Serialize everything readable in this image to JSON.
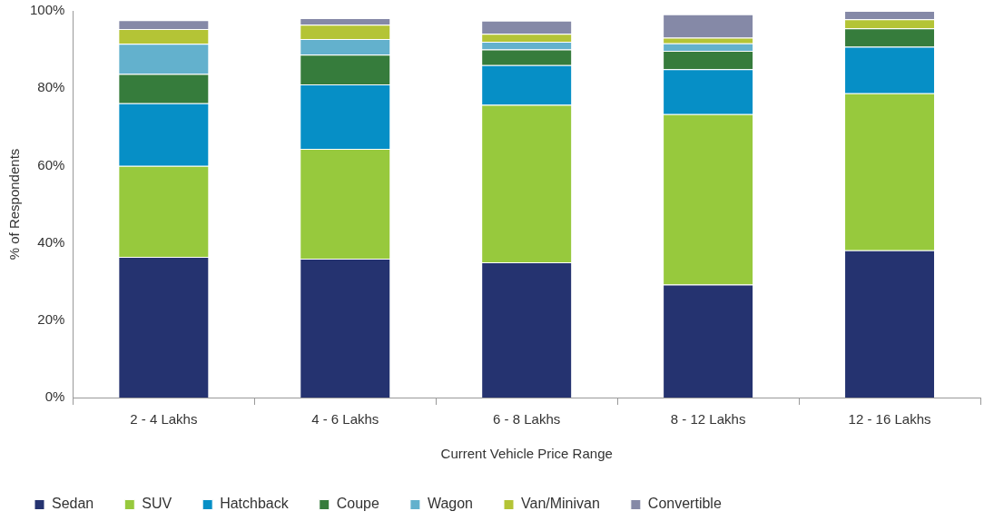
{
  "chart_data": {
    "type": "bar",
    "stacked": true,
    "xlabel": "Current Vehicle Price Range",
    "ylabel": "% of Respondents",
    "categories": [
      "2 - 4 Lakhs",
      "4 - 6 Lakhs",
      "6 - 8 Lakhs",
      "8 - 12 Lakhs",
      "12 - 16 Lakhs"
    ],
    "series": [
      {
        "name": "Sedan",
        "color": "#253370",
        "values": [
          36.4,
          35.9,
          35.0,
          29.2,
          38.1
        ]
      },
      {
        "name": "SUV",
        "color": "#97c93d",
        "values": [
          23.5,
          28.4,
          40.7,
          44.1,
          40.6
        ]
      },
      {
        "name": "Hatchback",
        "color": "#068fc6",
        "values": [
          16.2,
          16.7,
          10.3,
          11.6,
          12.0
        ]
      },
      {
        "name": "Coupe",
        "color": "#367c3c",
        "values": [
          7.6,
          7.7,
          4.0,
          4.8,
          4.8
        ]
      },
      {
        "name": "Wagon",
        "color": "#63b1cd",
        "values": [
          7.8,
          4.0,
          2.0,
          1.9,
          0
        ]
      },
      {
        "name": "Van/Minivan",
        "color": "#b4c436",
        "values": [
          3.8,
          3.7,
          2.1,
          1.5,
          2.3
        ]
      },
      {
        "name": "Convertible",
        "color": "#8589a7",
        "values": [
          2.3,
          1.7,
          3.4,
          6.0,
          2.2
        ]
      }
    ],
    "ylim": [
      0,
      100
    ],
    "yticks": [
      {
        "value": 0,
        "label": "0%"
      },
      {
        "value": 20,
        "label": "20%"
      },
      {
        "value": 40,
        "label": "40%"
      },
      {
        "value": 60,
        "label": "60%"
      },
      {
        "value": 80,
        "label": "80%"
      },
      {
        "value": 100,
        "label": "100%"
      }
    ],
    "grid": false,
    "legend": "bottom"
  }
}
